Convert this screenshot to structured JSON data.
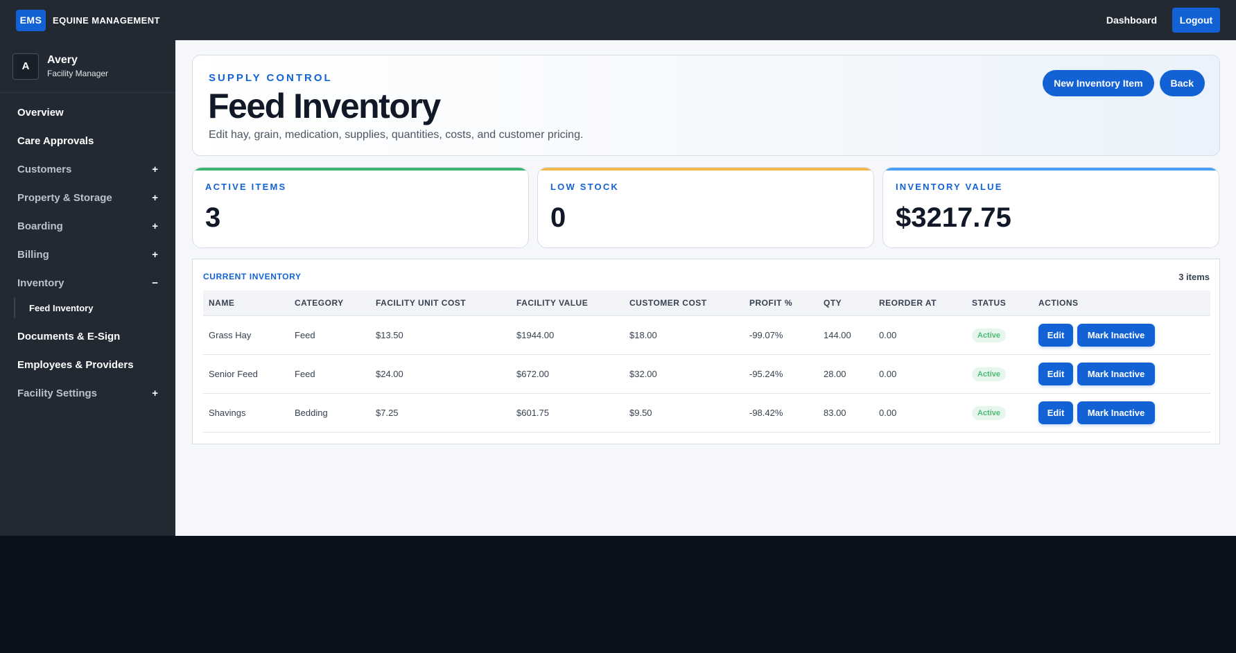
{
  "topbar": {
    "brand_badge": "EMS",
    "brand_name": "EQUINE MANAGEMENT",
    "dashboard_link": "Dashboard",
    "logout_label": "Logout"
  },
  "user": {
    "initial": "A",
    "name": "Avery",
    "role": "Facility Manager"
  },
  "sidebar": {
    "items": [
      {
        "label": "Overview",
        "toggle": ""
      },
      {
        "label": "Care Approvals",
        "toggle": ""
      },
      {
        "label": "Customers",
        "toggle": "+"
      },
      {
        "label": "Property & Storage",
        "toggle": "+"
      },
      {
        "label": "Boarding",
        "toggle": "+"
      },
      {
        "label": "Billing",
        "toggle": "+"
      },
      {
        "label": "Inventory",
        "toggle": "−"
      },
      {
        "label": "Documents & E-Sign",
        "toggle": ""
      },
      {
        "label": "Employees & Providers",
        "toggle": ""
      },
      {
        "label": "Facility Settings",
        "toggle": "+"
      }
    ],
    "sub_item": "Feed Inventory"
  },
  "hero": {
    "kicker": "SUPPLY CONTROL",
    "title": "Feed Inventory",
    "subtitle": "Edit hay, grain, medication, supplies, quantities, costs, and customer pricing.",
    "new_item_label": "New Inventory Item",
    "back_label": "Back"
  },
  "stats": [
    {
      "label": "ACTIVE ITEMS",
      "value": "3",
      "color": "#3cb371"
    },
    {
      "label": "LOW STOCK",
      "value": "0",
      "color": "#f2b84b"
    },
    {
      "label": "INVENTORY VALUE",
      "value": "$3217.75",
      "color": "#4a9ef5"
    }
  ],
  "inventory": {
    "title": "CURRENT INVENTORY",
    "count": "3 items",
    "headers": [
      "NAME",
      "CATEGORY",
      "FACILITY UNIT COST",
      "FACILITY VALUE",
      "CUSTOMER COST",
      "PROFIT %",
      "QTY",
      "REORDER AT",
      "STATUS",
      "ACTIONS"
    ],
    "rows": [
      {
        "name": "Grass Hay",
        "category": "Feed",
        "unit_cost": "$13.50",
        "value": "$1944.00",
        "customer_cost": "$18.00",
        "profit": "-99.07%",
        "qty": "144.00",
        "reorder": "0.00",
        "status": "Active"
      },
      {
        "name": "Senior Feed",
        "category": "Feed",
        "unit_cost": "$24.00",
        "value": "$672.00",
        "customer_cost": "$32.00",
        "profit": "-95.24%",
        "qty": "28.00",
        "reorder": "0.00",
        "status": "Active"
      },
      {
        "name": "Shavings",
        "category": "Bedding",
        "unit_cost": "$7.25",
        "value": "$601.75",
        "customer_cost": "$9.50",
        "profit": "-98.42%",
        "qty": "83.00",
        "reorder": "0.00",
        "status": "Active"
      }
    ],
    "edit_label": "Edit",
    "inactive_label": "Mark Inactive"
  }
}
